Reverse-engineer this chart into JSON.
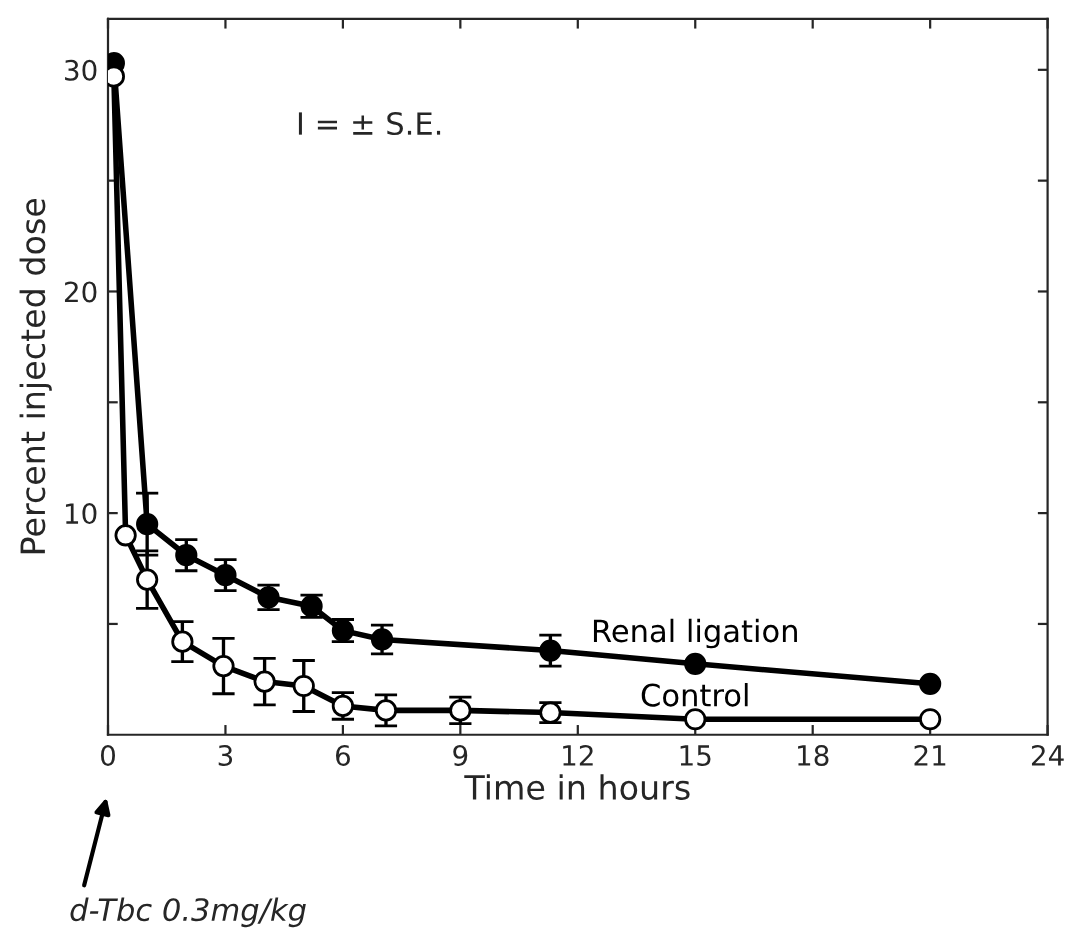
{
  "chart_data": {
    "type": "line",
    "xlabel": "Time in hours",
    "ylabel": "Percent injected dose",
    "xlim": [
      0,
      24
    ],
    "ylim": [
      0,
      32.3
    ],
    "xticks": [
      0,
      3,
      6,
      9,
      12,
      15,
      18,
      21,
      24
    ],
    "yticks": [
      {
        "value": 5,
        "label": null
      },
      10,
      {
        "value": 15,
        "label": null
      },
      20,
      {
        "value": 25,
        "label": null
      },
      30
    ],
    "marker": "circle",
    "line_style": "solid",
    "legend": false,
    "grid": false,
    "series": [
      {
        "name": "Renal ligation",
        "color": "#000000",
        "x": [
          0.15,
          1.0,
          2.0,
          3.0,
          4.1,
          5.2,
          6.0,
          7.0,
          11.3,
          15,
          21
        ],
        "values": [
          30.3,
          9.5,
          8.1,
          7.2,
          6.2,
          5.8,
          4.7,
          4.3,
          3.8,
          3.2,
          2.3
        ],
        "errors": [
          null,
          1.4,
          0.7,
          0.7,
          0.55,
          0.5,
          0.5,
          0.65,
          0.7,
          null,
          null
        ]
      },
      {
        "name": "Control",
        "color": "#000000",
        "x": [
          0.15,
          0.45,
          1.0,
          1.9,
          2.95,
          4.0,
          5.0,
          6.0,
          7.1,
          9.0,
          11.3,
          15,
          21
        ],
        "values": [
          29.7,
          9.0,
          7.0,
          4.2,
          3.1,
          2.4,
          2.2,
          1.3,
          1.1,
          1.1,
          1.0,
          0.7,
          0.7
        ],
        "errors": [
          null,
          null,
          1.3,
          0.9,
          1.25,
          1.05,
          1.15,
          0.6,
          0.7,
          0.6,
          0.45,
          null,
          null
        ]
      }
    ],
    "annotations": [
      "I = ± S.E.",
      "d-Tbc 0.3mg/kg"
    ]
  }
}
